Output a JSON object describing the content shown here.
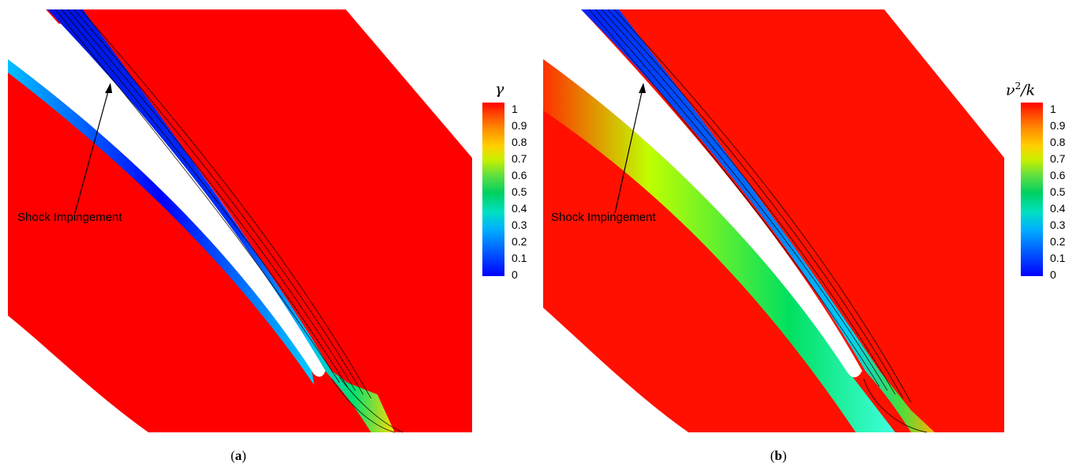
{
  "panels": [
    {
      "caption_letter": "a",
      "colorbar": {
        "variable": "γ",
        "ticks": [
          "1",
          "0.9",
          "0.8",
          "0.7",
          "0.6",
          "0.5",
          "0.4",
          "0.3",
          "0.2",
          "0.1",
          "0"
        ]
      },
      "annotation": "Shock Impingement"
    },
    {
      "caption_letter": "b",
      "colorbar": {
        "variable": "ν",
        "superscript": "2",
        "variable_suffix": "/k",
        "ticks": [
          "1",
          "0.9",
          "0.8",
          "0.7",
          "0.6",
          "0.5",
          "0.4",
          "0.3",
          "0.2",
          "0.1",
          "0"
        ]
      },
      "annotation": "Shock Impingement"
    }
  ],
  "colors": {
    "field_high": "#ff0000",
    "field_low": "#0000ff",
    "mid": "#00d060",
    "line": "#000000"
  }
}
